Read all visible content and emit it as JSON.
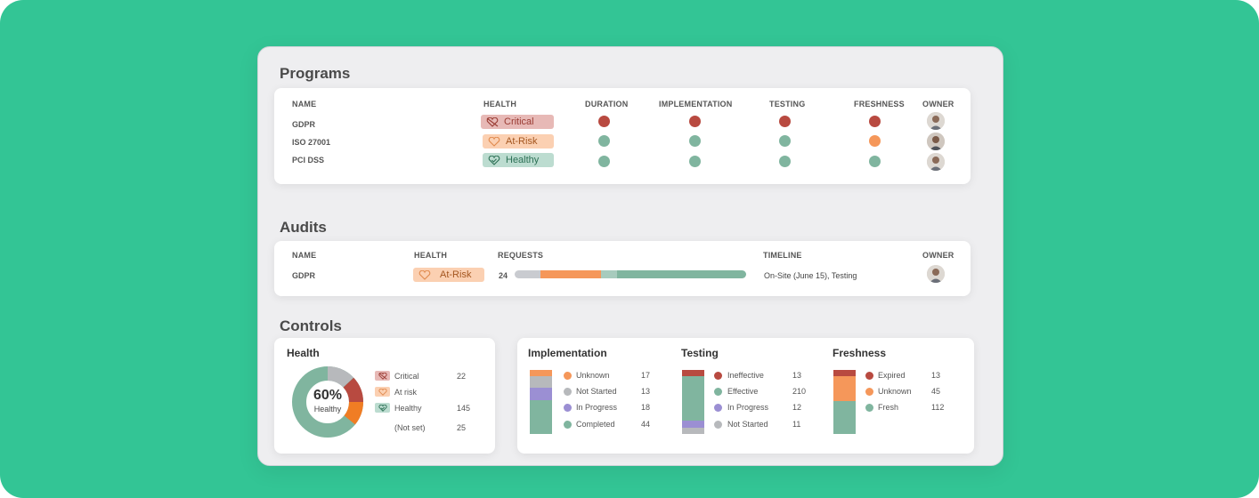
{
  "colors": {
    "background": "#33c595",
    "critical": "#b84a40",
    "atrisk": "#f5975a",
    "healthy": "#80b59f",
    "gray": "#c3c5c9",
    "purple": "#9b8fd3",
    "orange": "#f07d24",
    "darkred": "#b5453c",
    "donut_gray": "#b7b9bc"
  },
  "programs": {
    "title": "Programs",
    "columns": [
      "NAME",
      "HEALTH",
      "DURATION",
      "IMPLEMENTATION",
      "TESTING",
      "FRESHNESS",
      "OWNER"
    ],
    "rows": [
      {
        "name": "GDPR",
        "health": "Critical",
        "health_icon": "broken-heart-icon",
        "duration": "critical",
        "implementation": "critical",
        "testing": "critical",
        "freshness": "critical"
      },
      {
        "name": "ISO 27001",
        "health": "At-Risk",
        "health_icon": "heart-icon",
        "duration": "healthy",
        "implementation": "healthy",
        "testing": "healthy",
        "freshness": "atrisk"
      },
      {
        "name": "PCI DSS",
        "health": "Healthy",
        "health_icon": "heart-check-icon",
        "duration": "healthy",
        "implementation": "healthy",
        "testing": "healthy",
        "freshness": "healthy"
      }
    ]
  },
  "audits": {
    "title": "Audits",
    "columns": [
      "NAME",
      "HEALTH",
      "REQUESTS",
      "TIMELINE",
      "OWNER"
    ],
    "rows": [
      {
        "name": "GDPR",
        "health": "At-Risk",
        "requests": "24",
        "timeline": "On-Site (June 15), Testing",
        "request_progress": [
          {
            "status": "gray",
            "fraction": 0.11
          },
          {
            "status": "atrisk",
            "fraction": 0.26
          },
          {
            "status": "healthy_light",
            "fraction": 0.07
          },
          {
            "status": "healthy",
            "fraction": 0.56
          }
        ]
      }
    ]
  },
  "controls": {
    "title": "Controls",
    "health": {
      "title": "Health",
      "center_pct": "60%",
      "center_label": "Healthy",
      "legend": [
        {
          "label": "Critical",
          "value": "22",
          "chip": "critical"
        },
        {
          "label": "At risk",
          "value": "",
          "chip": "atrisk"
        },
        {
          "label": "Healthy",
          "value": "145",
          "chip": "healthy"
        },
        {
          "label": "(Not set)",
          "value": "25",
          "chip": "none"
        }
      ]
    },
    "implementation": {
      "title": "Implementation",
      "legend": [
        {
          "label": "Unknown",
          "value": "17",
          "color": "#f5975a"
        },
        {
          "label": "Not Started",
          "value": "13",
          "color": "#b7b9bc"
        },
        {
          "label": "In Progress",
          "value": "18",
          "color": "#9b8fd3"
        },
        {
          "label": "Completed",
          "value": "44",
          "color": "#80b59f"
        }
      ]
    },
    "testing": {
      "title": "Testing",
      "legend": [
        {
          "label": "Ineffective",
          "value": "13",
          "color": "#b84a40"
        },
        {
          "label": "Effective",
          "value": "210",
          "color": "#80b59f"
        },
        {
          "label": "In Progress",
          "value": "12",
          "color": "#9b8fd3"
        },
        {
          "label": "Not Started",
          "value": "11",
          "color": "#b7b9bc"
        }
      ]
    },
    "freshness": {
      "title": "Freshness",
      "legend": [
        {
          "label": "Expired",
          "value": "13",
          "color": "#b84a40"
        },
        {
          "label": "Unknown",
          "value": "45",
          "color": "#f5975a"
        },
        {
          "label": "Fresh",
          "value": "112",
          "color": "#80b59f"
        }
      ]
    }
  }
}
